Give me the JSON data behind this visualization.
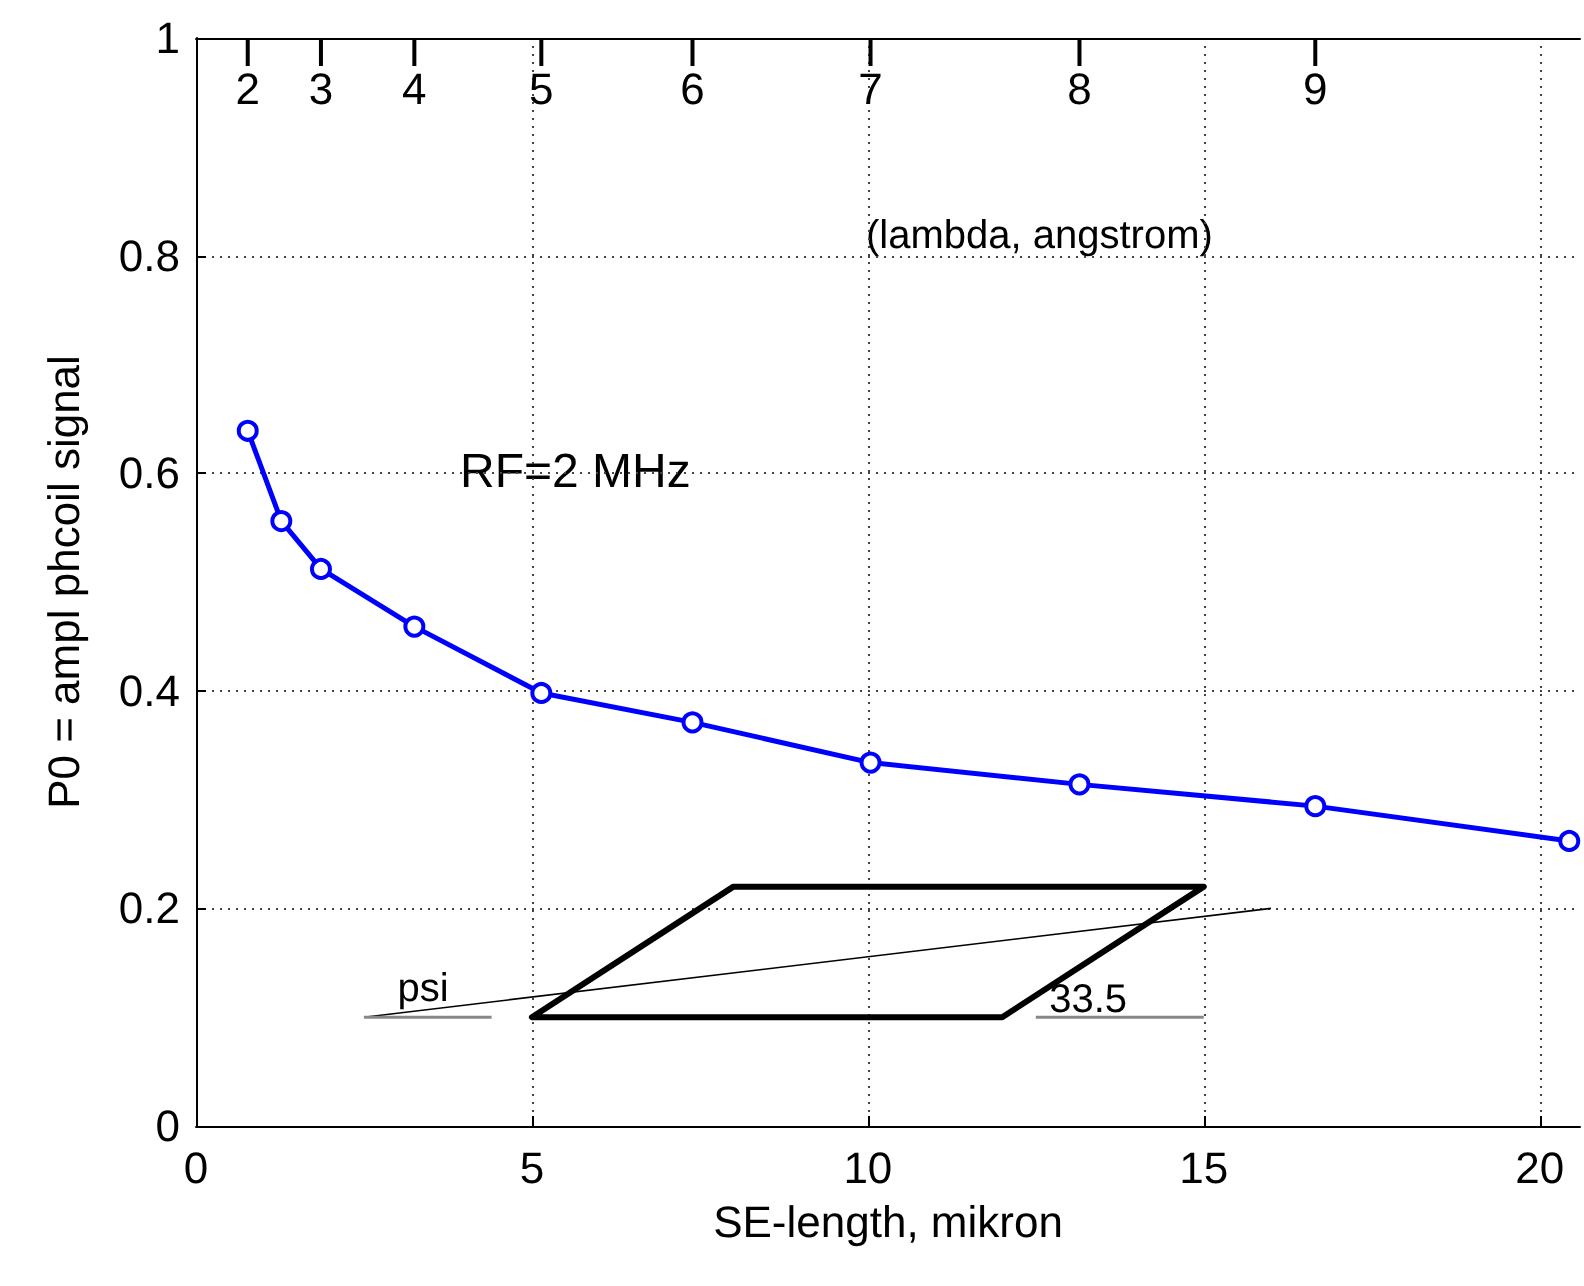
{
  "chart_data": {
    "type": "line",
    "xlabel": "SE-length, mikron",
    "ylabel": "P0 = ampl phcoil signal",
    "x2label": "(lambda, angstrom)",
    "annotations": [
      "RF=2 MHz",
      "psi",
      "33.5",
      {
        "text": "2",
        "x": 0.77
      },
      {
        "text": "3",
        "x": 1.86
      },
      {
        "text": "4",
        "x": 3.25
      },
      {
        "text": "5",
        "x": 5.14
      },
      {
        "text": "6",
        "x": 7.39
      },
      {
        "text": "7",
        "x": 10.04
      },
      {
        "text": "8",
        "x": 13.15
      },
      {
        "text": "9",
        "x": 16.66
      }
    ],
    "series": [
      {
        "color": "#0000ff",
        "x": [
          0.77,
          1.27,
          1.86,
          3.25,
          5.14,
          7.39,
          10.04,
          13.15,
          16.66,
          20.44
        ],
        "values": [
          0.639,
          0.556,
          0.512,
          0.459,
          0.398,
          0.371,
          0.334,
          0.314,
          0.294,
          0.262
        ]
      }
    ],
    "xlim": [
      0,
      20.6
    ],
    "xticks": [
      0,
      5,
      10,
      15,
      20
    ],
    "ylim": [
      0,
      1
    ],
    "yticks": [
      0,
      0.2,
      0.4,
      0.6,
      0.8,
      1
    ],
    "grid": true,
    "marker": "circle",
    "line_style": "solid"
  }
}
